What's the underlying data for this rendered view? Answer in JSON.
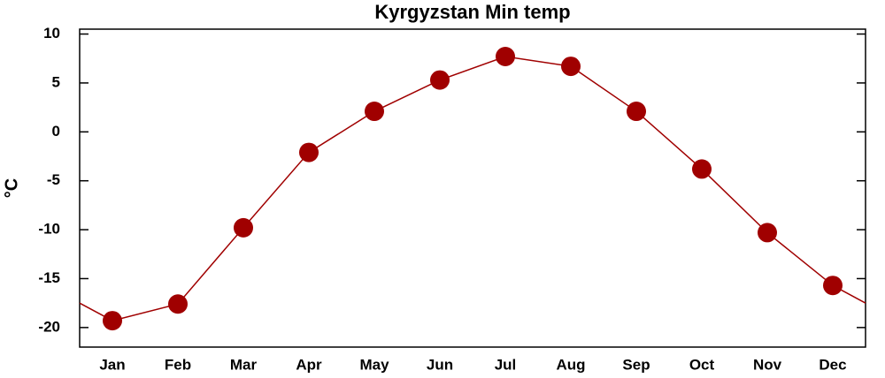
{
  "chart_data": {
    "type": "line",
    "title": "Kyrgyzstan Min temp",
    "y_label": "°C",
    "categories": [
      "Jan",
      "Feb",
      "Mar",
      "Apr",
      "May",
      "Jun",
      "Jul",
      "Aug",
      "Sep",
      "Oct",
      "Nov",
      "Dec"
    ],
    "series": [
      {
        "name": "Min temp",
        "color": "#a00000",
        "values": [
          -19.3,
          -17.6,
          -9.8,
          -2.1,
          2.1,
          5.3,
          7.7,
          6.7,
          2.1,
          -3.8,
          -10.3,
          -15.7
        ]
      }
    ],
    "ylim": [
      -22,
      10.5
    ],
    "yticks": [
      10,
      5,
      0,
      -5,
      -10,
      -15,
      -20
    ]
  }
}
